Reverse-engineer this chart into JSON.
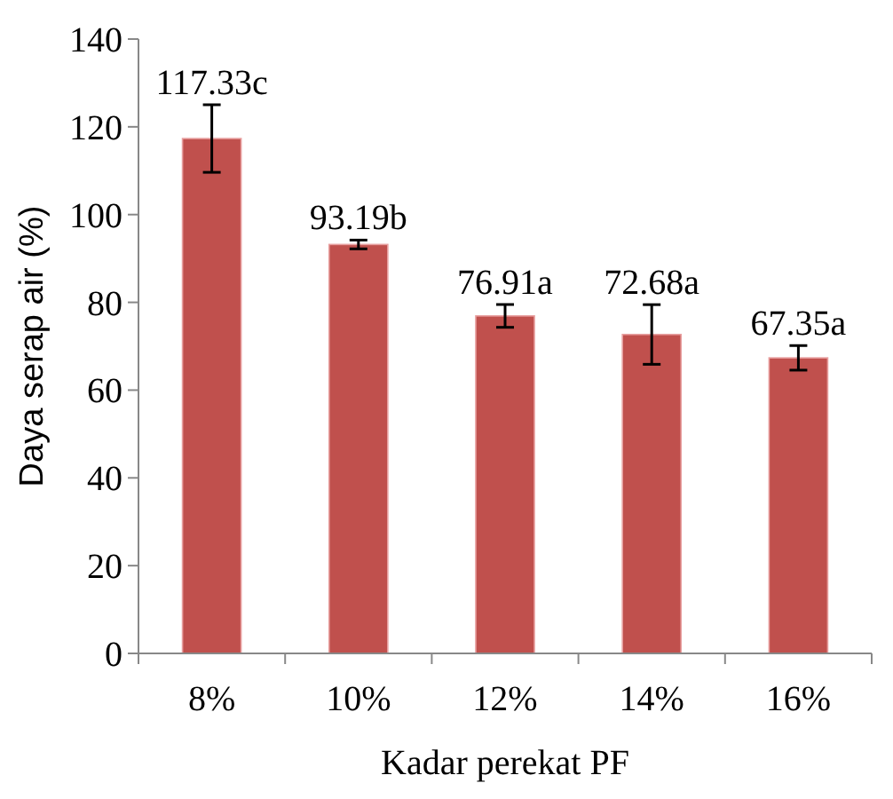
{
  "chart_data": {
    "type": "bar",
    "xlabel": "Kadar perekat PF",
    "ylabel": "Daya serap air (%)",
    "categories": [
      "8%",
      "10%",
      "12%",
      "14%",
      "16%"
    ],
    "values": [
      117.33,
      93.19,
      76.91,
      72.68,
      67.35
    ],
    "errors": [
      7.7,
      1.0,
      2.6,
      6.8,
      2.8
    ],
    "value_labels": [
      "117.33c",
      "93.19b",
      "76.91a",
      "72.68a",
      "67.35a"
    ],
    "color": "#c0504d",
    "ylim": [
      0,
      140
    ],
    "yticks": [
      0,
      20,
      40,
      60,
      80,
      100,
      120,
      140
    ],
    "grid": false
  }
}
